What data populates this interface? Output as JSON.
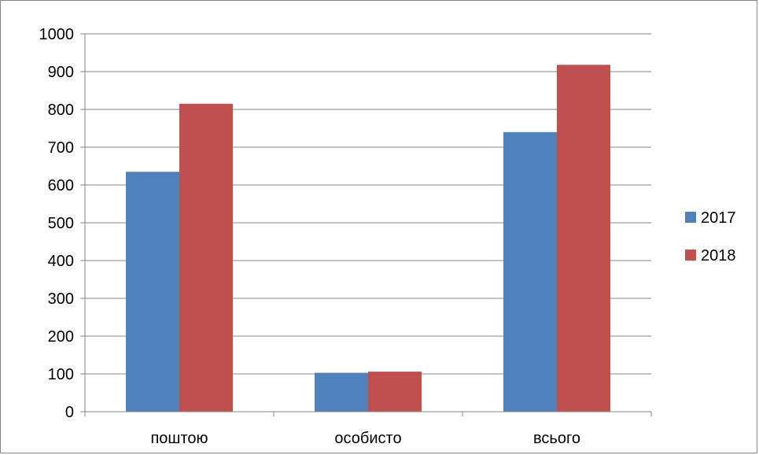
{
  "chart_data": {
    "type": "bar",
    "categories": [
      "поштою",
      "особисто",
      "всього"
    ],
    "series": [
      {
        "name": "2017",
        "color": "#4F81BD",
        "values": [
          635,
          103,
          740
        ]
      },
      {
        "name": "2018",
        "color": "#C0504D",
        "values": [
          815,
          106,
          918
        ]
      }
    ],
    "ylim": [
      0,
      1000
    ],
    "yticks": [
      0,
      100,
      200,
      300,
      400,
      500,
      600,
      700,
      800,
      900,
      1000
    ],
    "grid": true,
    "legend_position": "right"
  }
}
